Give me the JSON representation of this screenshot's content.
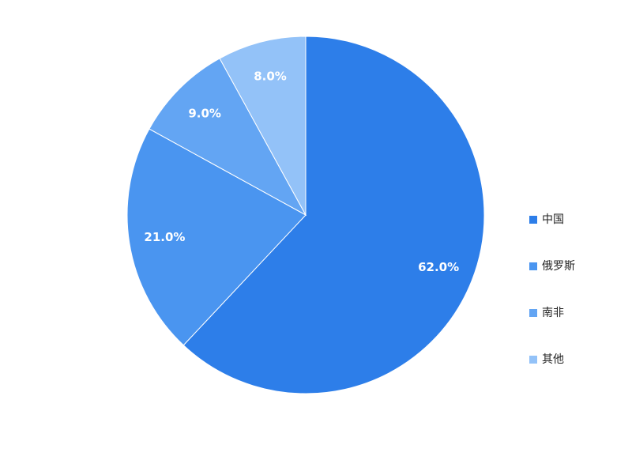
{
  "chart_data": {
    "type": "pie",
    "categories": [
      "中国",
      "俄罗斯",
      "南非",
      "其他"
    ],
    "values": [
      62,
      21,
      9,
      8
    ],
    "value_labels": [
      "62.0%",
      "21.0%",
      "9.0%",
      "8.0%"
    ],
    "colors": [
      "#2d7ee9",
      "#4a95f0",
      "#63a5f3",
      "#93c2f8"
    ],
    "legend": "right"
  }
}
